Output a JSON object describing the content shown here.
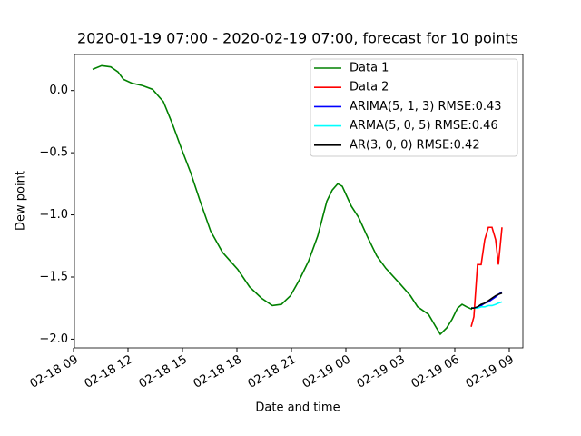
{
  "chart_data": {
    "type": "line",
    "title": "2020-01-19 07:00 - 2020-02-19 07:00, forecast for 10 points",
    "x_label": "Date and time",
    "y_label": "Dew point",
    "xlim": [
      "02-18 09:03",
      "02-19 09:45"
    ],
    "xticks": [
      "02-18 09",
      "02-18 12",
      "02-18 15",
      "02-18 18",
      "02-18 21",
      "02-19 00",
      "02-19 03",
      "02-19 06",
      "02-19 09"
    ],
    "ylim": [
      -2.07,
      0.29
    ],
    "yticks": [
      {
        "value": 0,
        "label": "0.0"
      },
      {
        "value": -0.5,
        "label": "−0.5"
      },
      {
        "value": -1,
        "label": "−1.0"
      },
      {
        "value": -1.5,
        "label": "−1.5"
      },
      {
        "value": -2,
        "label": "−2.0"
      }
    ],
    "legend": "upper right",
    "series": [
      {
        "name": "Data 1",
        "color": "#008000",
        "x": [
          "02-18 10:03",
          "02-18 10:33",
          "02-18 11:03",
          "02-18 11:27",
          "02-18 11:45",
          "02-18 12:12",
          "02-18 12:48",
          "02-18 13:21",
          "02-18 13:57",
          "02-18 14:27",
          "02-18 14:57",
          "02-18 15:27",
          "02-18 15:57",
          "02-18 16:33",
          "02-18 17:12",
          "02-18 18:03",
          "02-18 18:42",
          "02-18 19:21",
          "02-18 19:57",
          "02-18 20:27",
          "02-18 20:57",
          "02-18 21:27",
          "02-18 21:57",
          "02-18 22:27",
          "02-18 22:57",
          "02-18 23:15",
          "02-18 23:33",
          "02-18 23:48",
          "02-19 00:18",
          "02-19 00:42",
          "02-19 01:12",
          "02-19 01:42",
          "02-19 02:12",
          "02-19 02:57",
          "02-19 03:33",
          "02-19 03:57",
          "02-19 04:33",
          "02-19 04:57",
          "02-19 05:12",
          "02-19 05:33",
          "02-19 05:51",
          "02-19 06:09",
          "02-19 06:24",
          "02-19 06:39",
          "02-19 06:57"
        ],
        "values": [
          0.17,
          0.2,
          0.19,
          0.15,
          0.09,
          0.06,
          0.04,
          0.01,
          -0.09,
          -0.27,
          -0.47,
          -0.66,
          -0.88,
          -1.13,
          -1.3,
          -1.44,
          -1.58,
          -1.67,
          -1.73,
          -1.72,
          -1.65,
          -1.52,
          -1.37,
          -1.17,
          -0.89,
          -0.8,
          -0.75,
          -0.77,
          -0.93,
          -1.02,
          -1.18,
          -1.33,
          -1.43,
          -1.55,
          -1.65,
          -1.74,
          -1.8,
          -1.9,
          -1.96,
          -1.91,
          -1.84,
          -1.75,
          -1.72,
          -1.74,
          -1.76
        ]
      },
      {
        "name": "Data 2",
        "color": "#ff0000",
        "x": [
          "02-19 06:54",
          "02-19 07:03",
          "02-19 07:15",
          "02-19 07:27",
          "02-19 07:39",
          "02-19 07:51",
          "02-19 08:03",
          "02-19 08:15",
          "02-19 08:24",
          "02-19 08:36"
        ],
        "values": [
          -1.9,
          -1.82,
          -1.4,
          -1.4,
          -1.2,
          -1.1,
          -1.1,
          -1.2,
          -1.4,
          -1.1
        ]
      },
      {
        "name": "ARIMA(5, 1, 3) RMSE:0.43",
        "color": "#0000ff",
        "x": [
          "02-19 06:54",
          "02-19 07:03",
          "02-19 07:15",
          "02-19 07:27",
          "02-19 07:39",
          "02-19 07:51",
          "02-19 08:03",
          "02-19 08:15",
          "02-19 08:24",
          "02-19 08:36"
        ],
        "values": [
          -1.75,
          -1.75,
          -1.74,
          -1.73,
          -1.71,
          -1.7,
          -1.68,
          -1.66,
          -1.64,
          -1.62
        ]
      },
      {
        "name": "ARMA(5, 0, 5) RMSE:0.46",
        "color": "#00ffff",
        "x": [
          "02-19 06:54",
          "02-19 07:03",
          "02-19 07:15",
          "02-19 07:27",
          "02-19 07:39",
          "02-19 07:51",
          "02-19 08:03",
          "02-19 08:15",
          "02-19 08:24",
          "02-19 08:36"
        ],
        "values": [
          -1.75,
          -1.75,
          -1.75,
          -1.74,
          -1.74,
          -1.73,
          -1.73,
          -1.72,
          -1.71,
          -1.7
        ]
      },
      {
        "name": "AR(3, 0, 0) RMSE:0.42",
        "color": "#000000",
        "x": [
          "02-19 06:54",
          "02-19 07:03",
          "02-19 07:15",
          "02-19 07:27",
          "02-19 07:39",
          "02-19 07:51",
          "02-19 08:03",
          "02-19 08:15",
          "02-19 08:24",
          "02-19 08:36"
        ],
        "values": [
          -1.75,
          -1.75,
          -1.74,
          -1.72,
          -1.71,
          -1.69,
          -1.67,
          -1.65,
          -1.64,
          -1.63
        ]
      }
    ]
  }
}
